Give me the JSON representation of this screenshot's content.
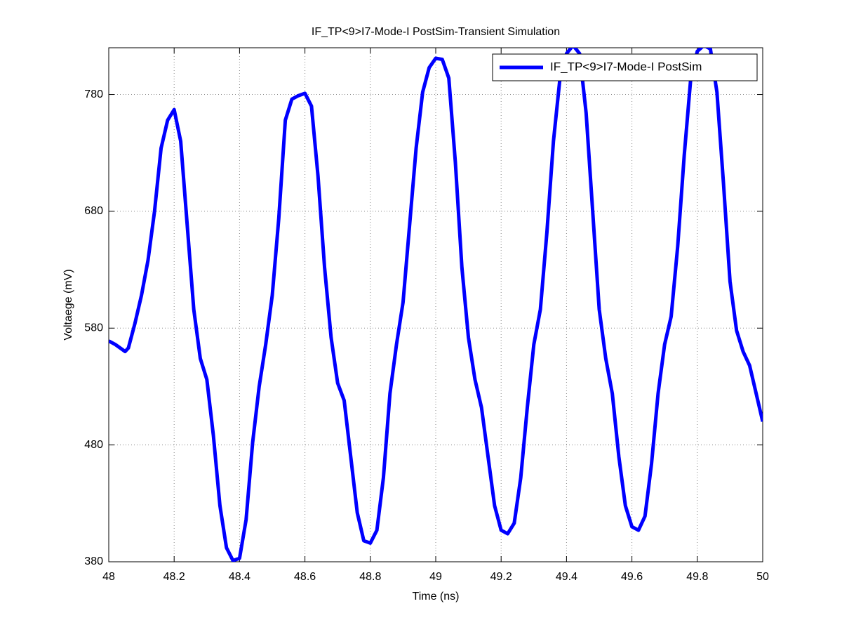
{
  "chart_data": {
    "type": "line",
    "title": "IF_TP<9>I7-Mode-I PostSim-Transient Simulation",
    "x_label": "Time (ns)",
    "y_label": "Voltaege (mV)",
    "x": [
      48.0,
      48.02,
      48.05,
      48.06,
      48.08,
      48.1,
      48.12,
      48.14,
      48.16,
      48.18,
      48.2,
      48.22,
      48.24,
      48.26,
      48.28,
      48.3,
      48.32,
      48.34,
      48.36,
      48.38,
      48.4,
      48.42,
      48.44,
      48.46,
      48.48,
      48.5,
      48.52,
      48.54,
      48.56,
      48.58,
      48.6,
      48.62,
      48.64,
      48.66,
      48.68,
      48.7,
      48.72,
      48.74,
      48.76,
      48.78,
      48.8,
      48.82,
      48.84,
      48.86,
      48.88,
      48.9,
      48.92,
      48.94,
      48.96,
      48.98,
      49.0,
      49.02,
      49.04,
      49.06,
      49.08,
      49.1,
      49.12,
      49.14,
      49.16,
      49.18,
      49.2,
      49.22,
      49.24,
      49.26,
      49.28,
      49.3,
      49.32,
      49.34,
      49.36,
      49.38,
      49.4,
      49.42,
      49.44,
      49.46,
      49.48,
      49.5,
      49.52,
      49.54,
      49.56,
      49.58,
      49.6,
      49.62,
      49.64,
      49.66,
      49.68,
      49.7,
      49.72,
      49.74,
      49.76,
      49.78,
      49.8,
      49.82,
      49.84,
      49.86,
      49.88,
      49.9,
      49.92,
      49.94,
      49.96,
      49.98,
      50.0
    ],
    "series": [
      {
        "name": "IF_TP<9>I7-Mode-I PostSim",
        "color": "#0000ff",
        "values": [
          569,
          566,
          560,
          563,
          584,
          608,
          638,
          680,
          734,
          758,
          767,
          740,
          668,
          596,
          554,
          536,
          488,
          428,
          392,
          381,
          383,
          416,
          482,
          530,
          566,
          608,
          674,
          758,
          776,
          779,
          781,
          770,
          710,
          632,
          572,
          533,
          518,
          470,
          422,
          398,
          396,
          407,
          452,
          524,
          566,
          602,
          668,
          734,
          782,
          803,
          811,
          810,
          794,
          722,
          632,
          572,
          536,
          512,
          470,
          428,
          407,
          404,
          413,
          452,
          512,
          566,
          596,
          662,
          740,
          794,
          815,
          822,
          815,
          764,
          680,
          596,
          554,
          524,
          470,
          428,
          410,
          407,
          419,
          464,
          524,
          566,
          590,
          650,
          728,
          794,
          817,
          822,
          819,
          782,
          704,
          620,
          578,
          560,
          548,
          524,
          500
        ]
      }
    ],
    "xlim": [
      48,
      50
    ],
    "ylim": [
      380,
      820
    ],
    "xticks": [
      48,
      48.2,
      48.4,
      48.6,
      48.8,
      49,
      49.2,
      49.4,
      49.6,
      49.8,
      50
    ],
    "yticks": [
      380,
      480,
      580,
      680,
      780
    ],
    "grid": true,
    "legend": "upper-right"
  }
}
